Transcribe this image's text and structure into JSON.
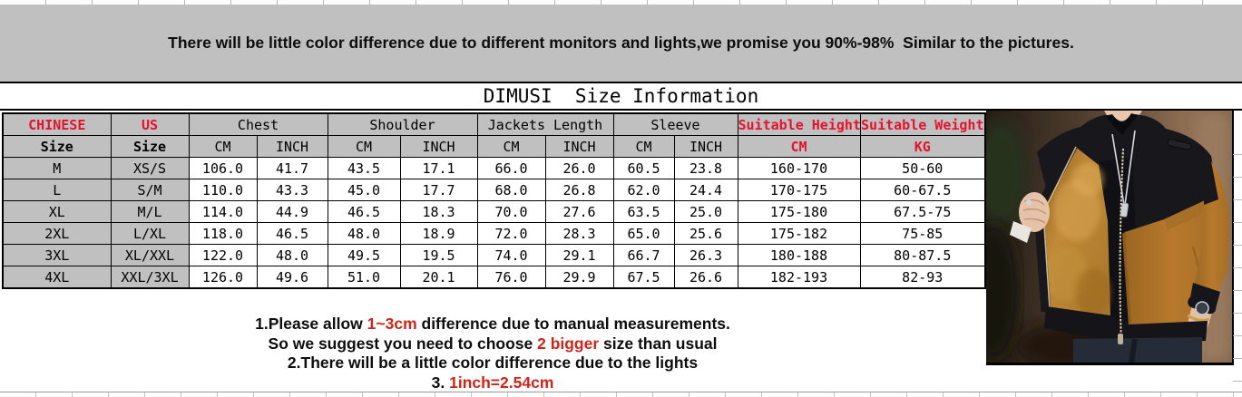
{
  "banner": {
    "text": "There will be little color difference due to different monitors and lights,we promise you 90%-98%  Similar to the pictures."
  },
  "title": "DIMUSI  Size Information",
  "table": {
    "group_headers": {
      "chinese": "CHINESE",
      "us": "US",
      "chest": "Chest",
      "shoulder": "Shoulder",
      "jackets_length": "Jackets Length",
      "sleeve": "Sleeve",
      "suitable_height": "Suitable Height",
      "suitable_weight": "Suitable Weight"
    },
    "sub_headers": [
      "Size",
      "Size",
      "CM",
      "INCH",
      "CM",
      "INCH",
      "CM",
      "INCH",
      "CM",
      "INCH",
      "CM",
      "KG"
    ],
    "rows": [
      [
        "M",
        "XS/S",
        "106.0",
        "41.7",
        "43.5",
        "17.1",
        "66.0",
        "26.0",
        "60.5",
        "23.8",
        "160-170",
        "50-60"
      ],
      [
        "L",
        "S/M",
        "110.0",
        "43.3",
        "45.0",
        "17.7",
        "68.0",
        "26.8",
        "62.0",
        "24.4",
        "170-175",
        "60-67.5"
      ],
      [
        "XL",
        "M/L",
        "114.0",
        "44.9",
        "46.5",
        "18.3",
        "70.0",
        "27.6",
        "63.5",
        "25.0",
        "175-180",
        "67.5-75"
      ],
      [
        "2XL",
        "L/XL",
        "118.0",
        "46.5",
        "48.0",
        "18.9",
        "72.0",
        "28.3",
        "65.0",
        "25.6",
        "175-182",
        "75-85"
      ],
      [
        "3XL",
        "XL/XXL",
        "122.0",
        "48.0",
        "49.5",
        "19.5",
        "74.0",
        "29.1",
        "66.7",
        "26.3",
        "180-188",
        "80-87.5"
      ],
      [
        "4XL",
        "XXL/3XL",
        "126.0",
        "49.6",
        "51.0",
        "20.1",
        "76.0",
        "29.9",
        "67.5",
        "26.6",
        "182-193",
        "82-93"
      ]
    ]
  },
  "notes": {
    "line1": {
      "pre": "1.Please allow ",
      "red": "1~3cm",
      "post": " difference due to manual measurements."
    },
    "line2": {
      "pre": "So we suggest you need to choose ",
      "red": "2 bigger",
      "post": " size than usual"
    },
    "line3": {
      "text": "2.There will be a little color difference due to the lights"
    },
    "line4": {
      "pre": "3. ",
      "red": "1inch=2.54cm"
    }
  },
  "photo": {
    "description": "Man wearing a black and camel color-block zip jacket held open to show golden fleece lining"
  },
  "colors": {
    "banner_bg": "#c0c0c0",
    "header_bg": "#c0c0c0",
    "table_red": "#e8112d",
    "notes_red": "#d02418",
    "jacket_camel": "#b4772c",
    "jacket_black": "#17171c"
  }
}
